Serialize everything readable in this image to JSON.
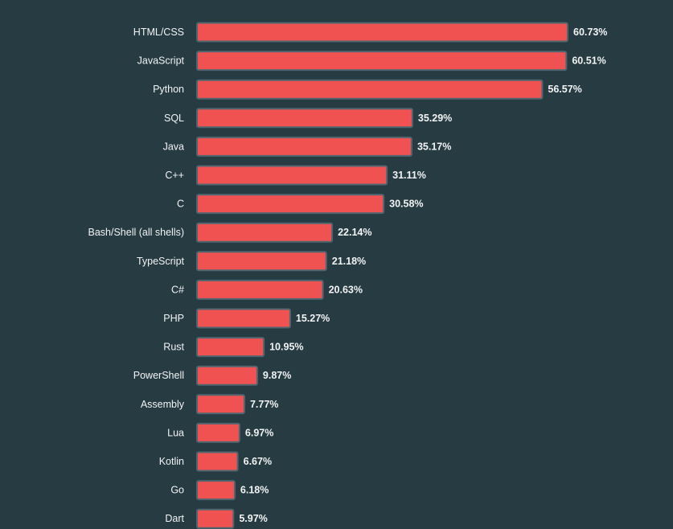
{
  "chart_data": {
    "type": "bar",
    "orientation": "horizontal",
    "categories": [
      "HTML/CSS",
      "JavaScript",
      "Python",
      "SQL",
      "Java",
      "C++",
      "C",
      "Bash/Shell (all shells)",
      "TypeScript",
      "C#",
      "PHP",
      "Rust",
      "PowerShell",
      "Assembly",
      "Lua",
      "Kotlin",
      "Go",
      "Dart"
    ],
    "values": [
      60.73,
      60.51,
      56.57,
      35.29,
      35.17,
      31.11,
      30.58,
      22.14,
      21.18,
      20.63,
      15.27,
      10.95,
      9.87,
      7.77,
      6.97,
      6.67,
      6.18,
      5.97
    ],
    "value_labels": [
      "60.73%",
      "60.51%",
      "56.57%",
      "35.29%",
      "35.17%",
      "31.11%",
      "30.58%",
      "22.14%",
      "21.18%",
      "20.63%",
      "15.27%",
      "10.95%",
      "9.87%",
      "7.77%",
      "6.97%",
      "6.67%",
      "6.18%",
      "5.97%"
    ],
    "xlim": [
      0,
      60.73
    ],
    "grid": false,
    "legend": "none",
    "title": "",
    "xlabel": "",
    "ylabel": "",
    "colors": {
      "background": "#273b42",
      "bar_fill": "#f05252",
      "bar_stroke": "#4f6670",
      "text": "#f2f4f5"
    }
  }
}
